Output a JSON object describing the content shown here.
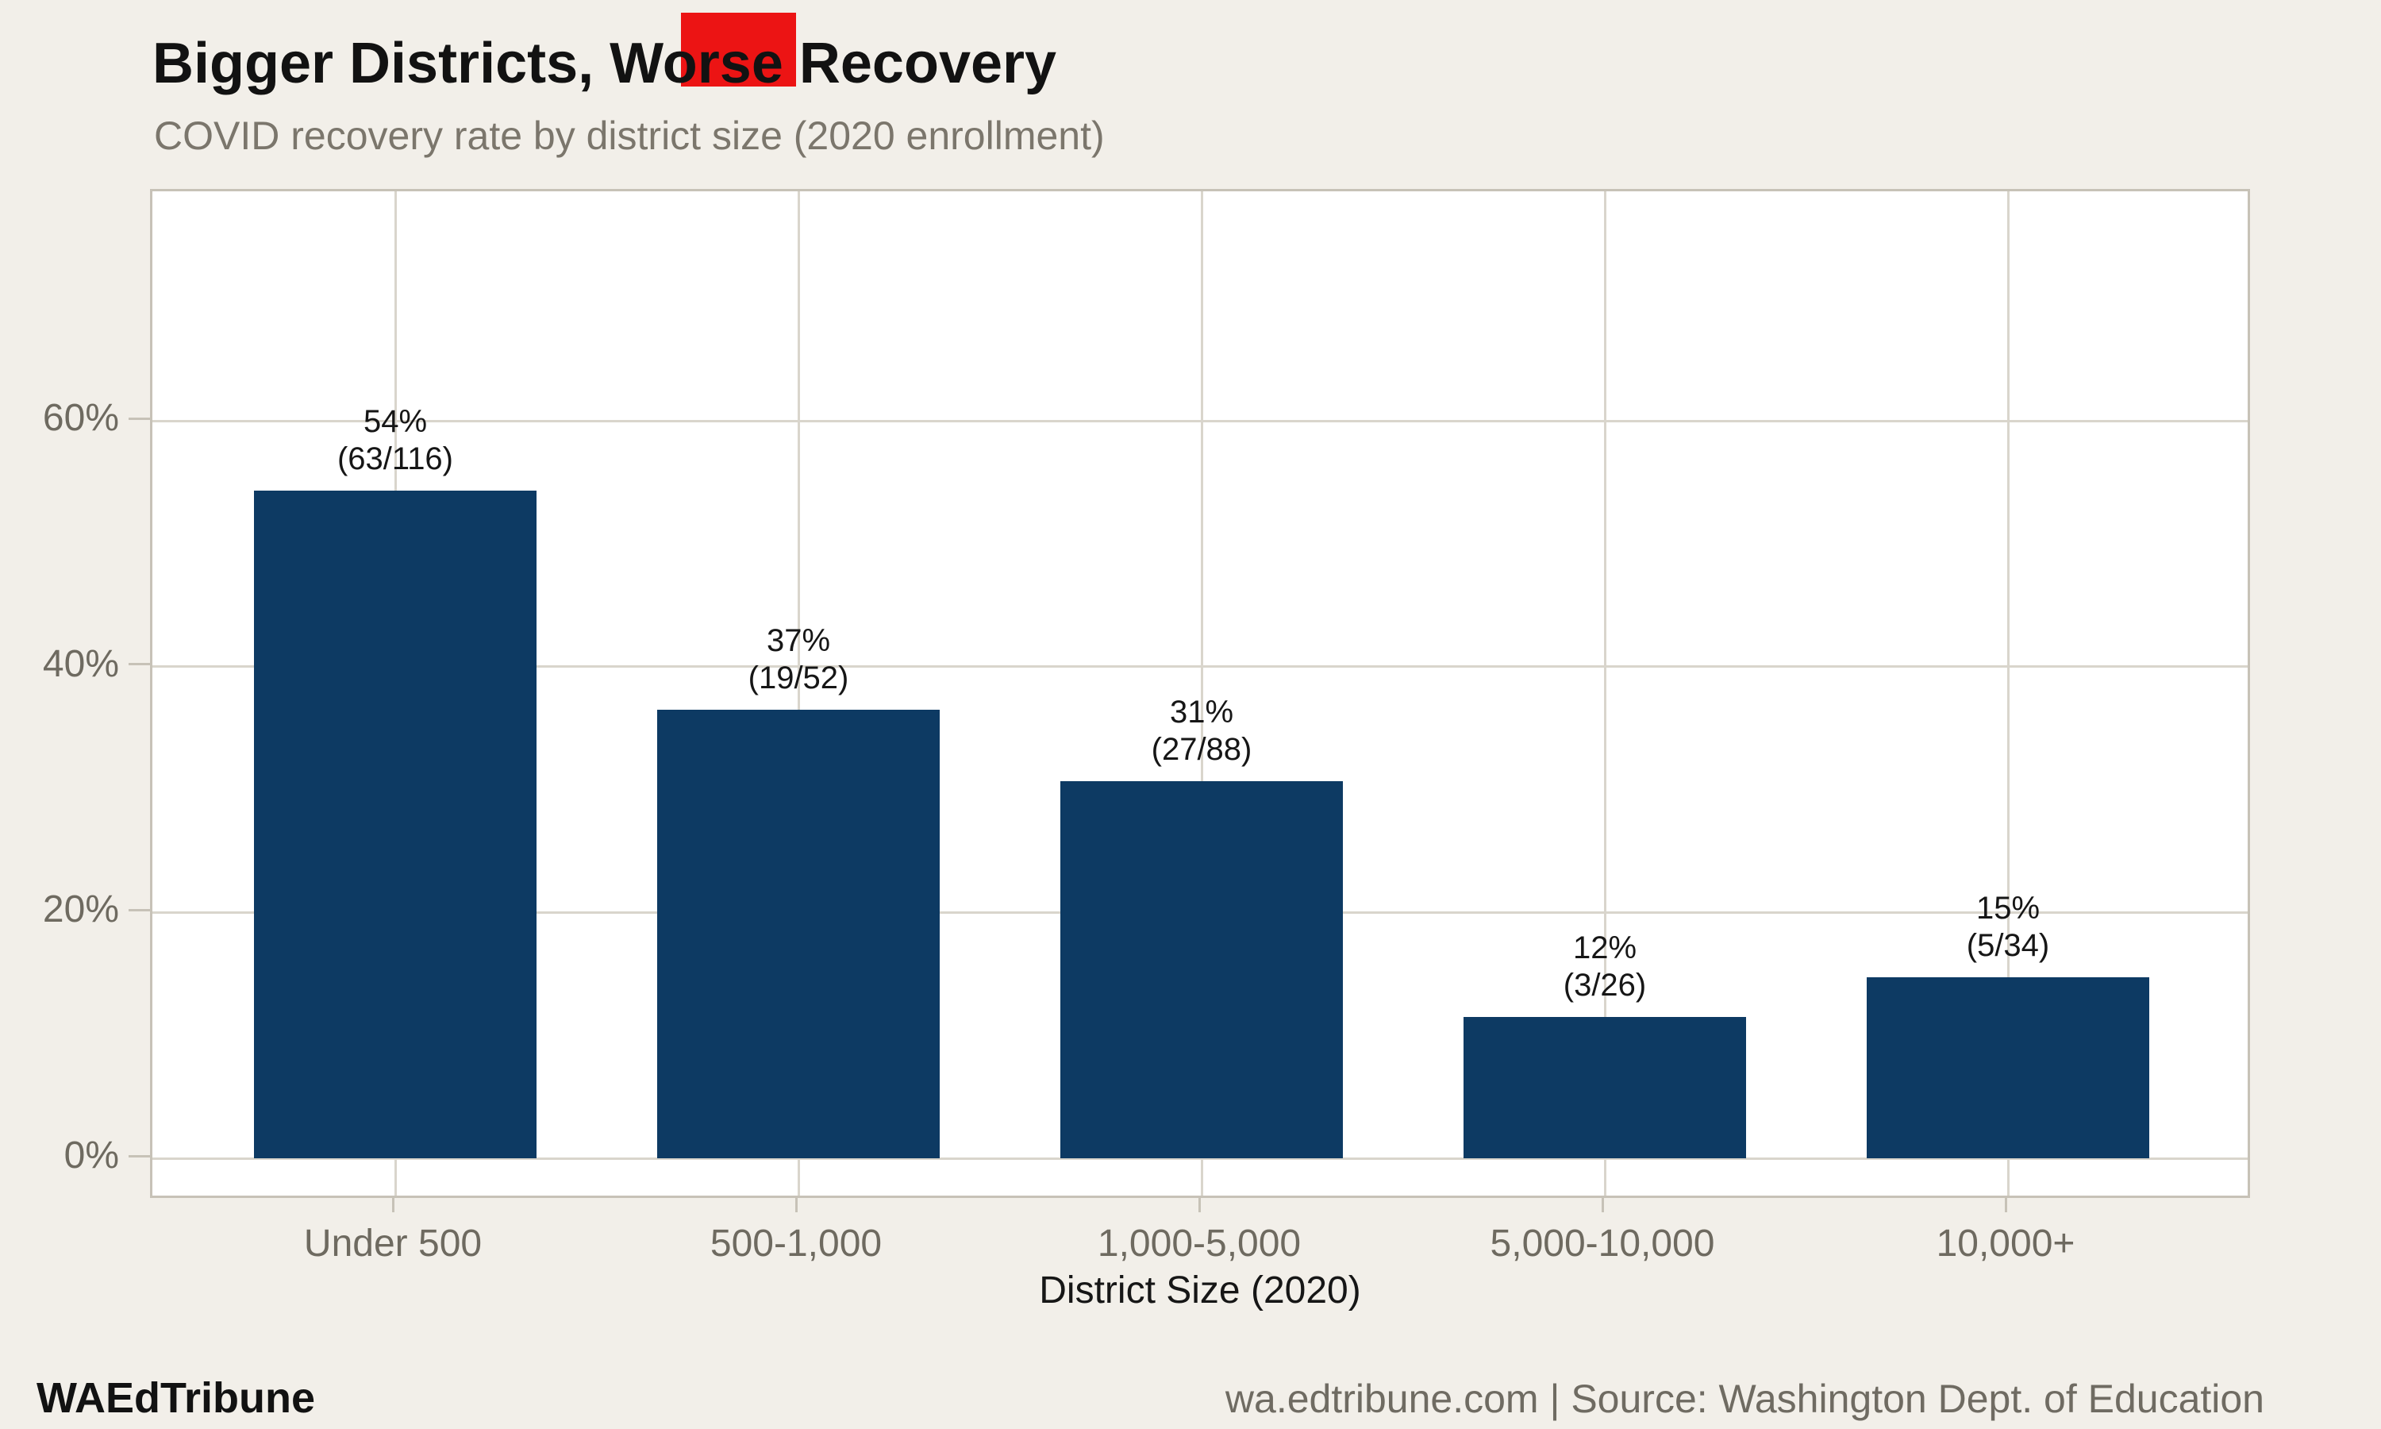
{
  "header": {
    "title": "Bigger Districts, Worse Recovery",
    "subtitle": "COVID recovery rate by district size (2020 enrollment)"
  },
  "chart_data": {
    "type": "bar",
    "title": "Bigger Districts, Worse Recovery",
    "subtitle": "COVID recovery rate by district size (2020 enrollment)",
    "categories": [
      "Under 500",
      "500-1,000",
      "1,000-5,000",
      "5,000-10,000",
      "10,000+"
    ],
    "values": [
      54.3,
      36.5,
      30.7,
      11.5,
      14.7
    ],
    "value_labels": [
      "54%",
      "37%",
      "31%",
      "12%",
      "15%"
    ],
    "fraction_labels": [
      "(63/116)",
      "(19/52)",
      "(27/88)",
      "(3/26)",
      "(5/34)"
    ],
    "recovered_counts": [
      63,
      19,
      27,
      3,
      5
    ],
    "district_counts": [
      116,
      52,
      88,
      26,
      34
    ],
    "xlabel": "District Size (2020)",
    "ylabel": "",
    "y_ticks": [
      {
        "value": 0,
        "label": "0%"
      },
      {
        "value": 20,
        "label": "20%"
      },
      {
        "value": 40,
        "label": "40%"
      },
      {
        "value": 60,
        "label": "60%"
      }
    ],
    "ylim": [
      0,
      73.5
    ],
    "grid": "on",
    "legend": "none"
  },
  "footer": {
    "brand": "WAEdTribune",
    "source": "wa.edtribune.com | Source: Washington Dept. of Education"
  },
  "colors": {
    "background": "#f2efe9",
    "panel": "#ffffff",
    "bar": "#0d3a63",
    "gridline": "#d9d5cc",
    "axis_line": "#c7c2b7",
    "tick_label": "#6e6a60",
    "title": "#121212",
    "subtitle": "#7b766c",
    "value_label": "#161616",
    "footer_brand": "#121212",
    "footer_source": "#6f6b62",
    "marker": "#ec1414"
  }
}
